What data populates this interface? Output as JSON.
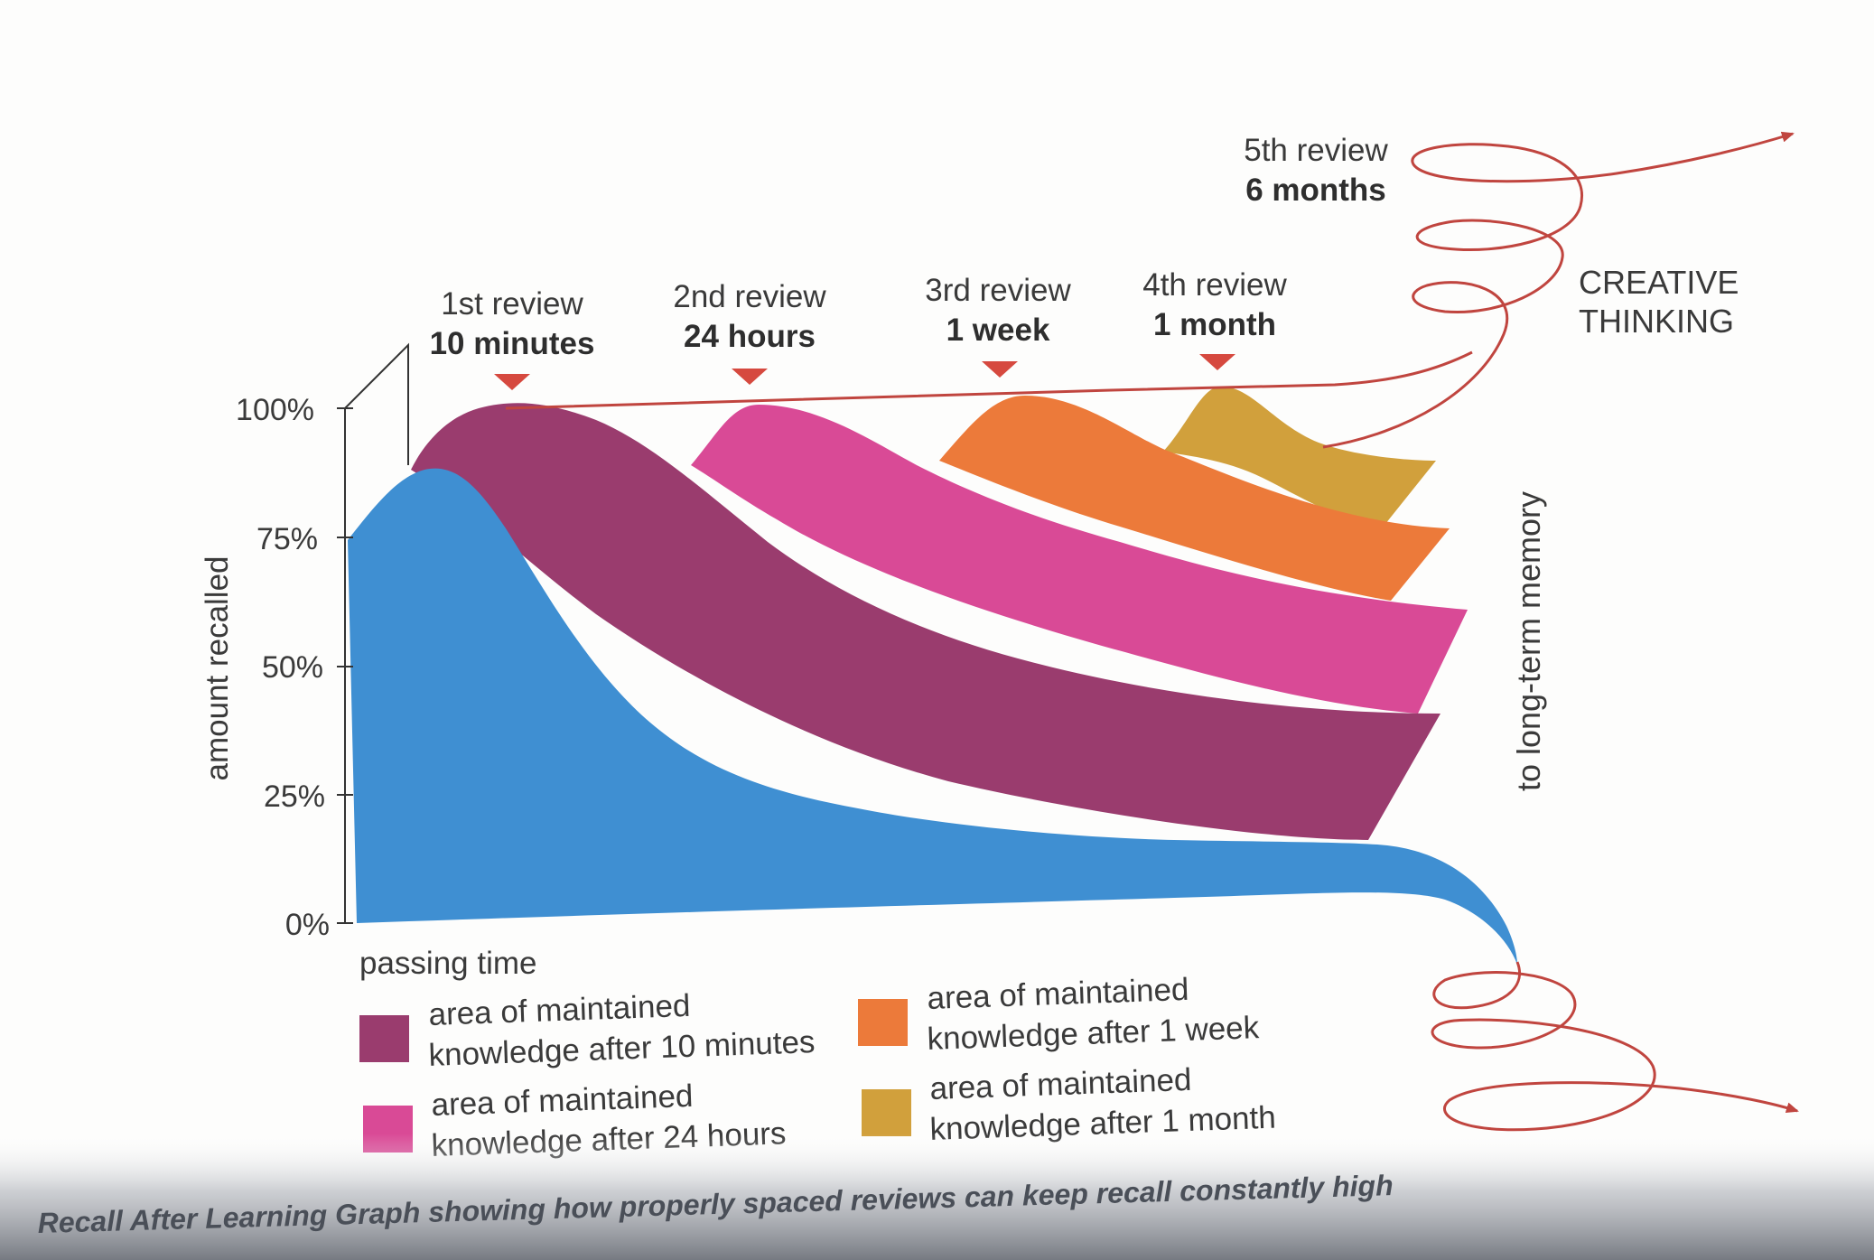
{
  "chart_data": {
    "type": "area",
    "ylabel": "amount recalled",
    "xlabel": "passing time",
    "y_ticks": [
      "100%",
      "75%",
      "50%",
      "25%",
      "0%"
    ],
    "ylim": [
      0,
      100
    ],
    "reviews": [
      {
        "label": "1st review",
        "time": "10 minutes"
      },
      {
        "label": "2nd review",
        "time": "24 hours"
      },
      {
        "label": "3rd review",
        "time": "1 week"
      },
      {
        "label": "4th review",
        "time": "1 month"
      },
      {
        "label": "5th review",
        "time": "6 months"
      }
    ],
    "creative_thinking": [
      "CREATIVE",
      "THINKING"
    ],
    "long_term_memory": "to long-term memory",
    "legend": [
      {
        "line1": "area of maintained",
        "line2": "knowledge after 10 minutes",
        "color": "#9a3c6e"
      },
      {
        "line1": "area of maintained",
        "line2": "knowledge after 24 hours",
        "color": "#d94a96"
      },
      {
        "line1": "area of maintained",
        "line2": "knowledge after 1 week",
        "color": "#ec7a3a"
      },
      {
        "line1": "area of maintained",
        "line2": "knowledge after 1 month",
        "color": "#d1a03c"
      }
    ],
    "colors": {
      "base": "#3f8fd2",
      "after_10_minutes": "#9a3c6e",
      "after_24_hours": "#d94a96",
      "after_1_week": "#ec7a3a",
      "after_1_month": "#d1a03c",
      "spiral": "#c0453f",
      "marker": "#d6493f"
    },
    "series": [
      {
        "key": "base",
        "values": [
          75,
          88,
          37,
          16,
          0
        ]
      },
      {
        "key": "after_10_minutes",
        "values": [
          100,
          100,
          54,
          40,
          16
        ]
      },
      {
        "key": "after_24_hours",
        "values": [
          100,
          60,
          42
        ]
      },
      {
        "key": "after_1_week",
        "values": [
          100,
          75,
          64
        ]
      },
      {
        "key": "after_1_month",
        "values": [
          100,
          87,
          85
        ]
      }
    ]
  },
  "caption": "Recall After Learning Graph showing how properly spaced reviews can keep recall constantly high"
}
